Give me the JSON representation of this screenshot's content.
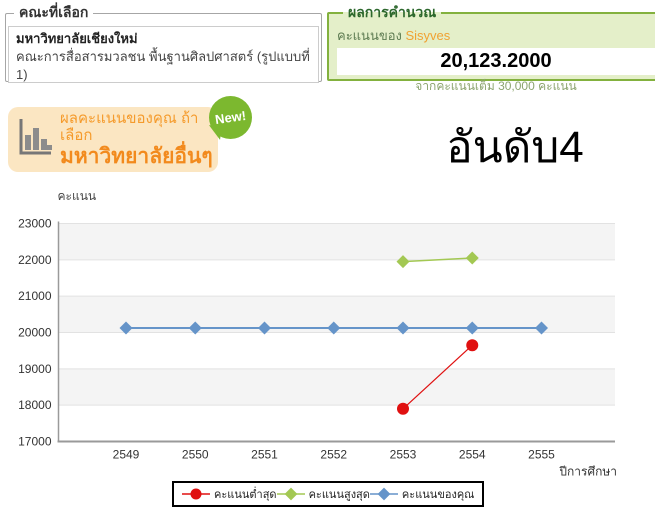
{
  "selection_box": {
    "legend": "คณะที่เลือก",
    "university": "มหาวิทยาลัยเชียงใหม่",
    "faculty": "คณะการสื่อสารมวลชน พื้นฐานศิลปศาสตร์ (รูปแบบที่ 1)"
  },
  "result_box": {
    "legend": "ผลการคำนวณ",
    "score_of_label": "คะแนนของ",
    "username": "Sisyves",
    "score": "20,123.2000",
    "full_score_note": "จากคะแนนเต็ม 30,000 คะแนน"
  },
  "compare_bubble": {
    "icon": "bar-chart-icon",
    "line1": "ผลคะแนนของคุณ ถ้าเลือก",
    "line2": "มหาวิทยาลัยอื่นๆ",
    "badge": "New!"
  },
  "rank": {
    "text": "อันดับ4"
  },
  "colors": {
    "result_border_green": "#83b13e",
    "result_bg_green": "#e4efc9",
    "bubble_orange_bg": "#fbe6c2",
    "bubble_orange_text": "#f28a1d",
    "badge_green": "#7cb82f",
    "series_min_red": "#e01010",
    "series_max_green": "#a3c853",
    "series_yours_blue": "#6594c9"
  },
  "chart_data": {
    "type": "line",
    "title": "",
    "ylabel": "คะแนน",
    "xlabel": "ปีการศึกษา",
    "ylim": [
      17000,
      23000
    ],
    "ytick_step": 1000,
    "grid": "horizontal-bands-alternating",
    "legend_position": "bottom",
    "categories": [
      2549,
      2550,
      2551,
      2552,
      2553,
      2554,
      2555
    ],
    "series": [
      {
        "key": "min",
        "name": "คะแนนต่ำสุด",
        "color": "#e01010",
        "marker": "circle",
        "line_width": 1.2,
        "values": [
          null,
          null,
          null,
          null,
          17900,
          19650,
          null
        ]
      },
      {
        "key": "max",
        "name": "คะแนนสูงสุด",
        "color": "#a3c853",
        "marker": "diamond",
        "line_width": 1.5,
        "values": [
          null,
          null,
          null,
          null,
          21950,
          22050,
          null
        ]
      },
      {
        "key": "yours",
        "name": "คะแนนของคุณ",
        "color": "#6594c9",
        "marker": "diamond",
        "line_width": 2,
        "values": [
          20123.2,
          20123.2,
          20123.2,
          20123.2,
          20123.2,
          20123.2,
          20123.2
        ]
      }
    ]
  }
}
